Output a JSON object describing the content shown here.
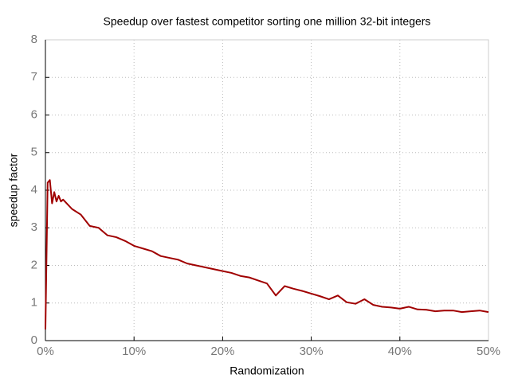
{
  "chart_data": {
    "type": "line",
    "title": "Speedup over fastest competitor sorting one million 32-bit integers",
    "x_label": "Randomization",
    "y_label": "speedup factor",
    "x": [
      0,
      0.25,
      0.5,
      0.75,
      1,
      1.25,
      1.5,
      1.75,
      2,
      3,
      4,
      5,
      6,
      7,
      8,
      9,
      10,
      11,
      12,
      13,
      14,
      15,
      16,
      17,
      18,
      19,
      20,
      21,
      22,
      23,
      24,
      25,
      26,
      27,
      28,
      29,
      30,
      31,
      32,
      33,
      34,
      35,
      36,
      37,
      38,
      39,
      40,
      41,
      42,
      43,
      44,
      45,
      46,
      47,
      48,
      49,
      50
    ],
    "series": [
      {
        "color": "#a00000",
        "values": [
          0.3,
          4.2,
          4.27,
          3.65,
          3.95,
          3.7,
          3.85,
          3.7,
          3.75,
          3.5,
          3.35,
          3.05,
          3.0,
          2.8,
          2.75,
          2.65,
          2.52,
          2.45,
          2.38,
          2.25,
          2.2,
          2.15,
          2.05,
          2.0,
          1.95,
          1.9,
          1.85,
          1.8,
          1.72,
          1.68,
          1.6,
          1.52,
          1.2,
          1.45,
          1.38,
          1.32,
          1.25,
          1.18,
          1.1,
          1.2,
          1.02,
          0.98,
          1.1,
          0.95,
          0.9,
          0.88,
          0.85,
          0.9,
          0.83,
          0.82,
          0.78,
          0.8,
          0.8,
          0.76,
          0.78,
          0.8,
          0.76
        ]
      }
    ],
    "xlim": [
      0,
      50
    ],
    "xticks": [
      {
        "value": 0,
        "label": "0%"
      },
      {
        "value": 10,
        "label": "10%"
      },
      {
        "value": 20,
        "label": "20%"
      },
      {
        "value": 30,
        "label": "30%"
      },
      {
        "value": 40,
        "label": "40%"
      },
      {
        "value": 50,
        "label": "50%"
      }
    ],
    "ylim": [
      0,
      8
    ],
    "yticks": [
      0,
      1,
      2,
      3,
      4,
      5,
      6,
      7,
      8
    ],
    "grid": true
  }
}
